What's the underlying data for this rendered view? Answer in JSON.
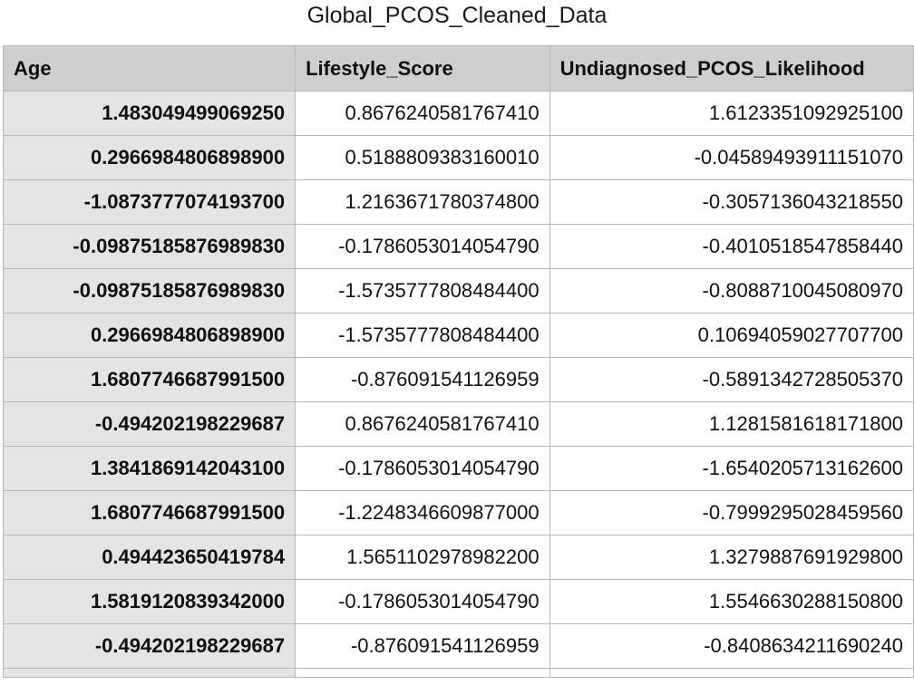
{
  "title": "Global_PCOS_Cleaned_Data",
  "columns": [
    "Age",
    "Lifestyle_Score",
    "Undiagnosed_PCOS_Likelihood"
  ],
  "rows": [
    [
      "1.483049499069250",
      "0.8676240581767410",
      "1.6123351092925100"
    ],
    [
      "0.2966984806898900",
      "0.5188809383160010",
      "-0.04589493911151070"
    ],
    [
      "-1.0873777074193700",
      "1.2163671780374800",
      "-0.3057136043218550"
    ],
    [
      "-0.09875185876989830",
      "-0.1786053014054790",
      "-0.4010518547858440"
    ],
    [
      "-0.09875185876989830",
      "-1.5735777808484400",
      "-0.8088710045080970"
    ],
    [
      "0.2966984806898900",
      "-1.5735777808484400",
      "0.10694059027707700"
    ],
    [
      "1.6807746687991500",
      "-0.876091541126959",
      "-0.5891342728505370"
    ],
    [
      "-0.494202198229687",
      "0.8676240581767410",
      "1.1281581618171800"
    ],
    [
      "1.3841869142043100",
      "-0.1786053014054790",
      "-1.6540205713162600"
    ],
    [
      "1.6807746687991500",
      "-1.2248346609877000",
      "-0.7999295028459560"
    ],
    [
      "0.494423650419784",
      "1.5651102978982200",
      "1.3279887691929800"
    ],
    [
      "1.5819120839342000",
      "-0.1786053014054790",
      "1.5546630288150800"
    ],
    [
      "-0.494202198229687",
      "-0.876091541126959",
      "-0.8408634211690240"
    ]
  ],
  "colors": {
    "header_bg": "#cfcfcf",
    "first_col_bg": "#e4e4e4",
    "grid_line": "#b7b7b7"
  }
}
